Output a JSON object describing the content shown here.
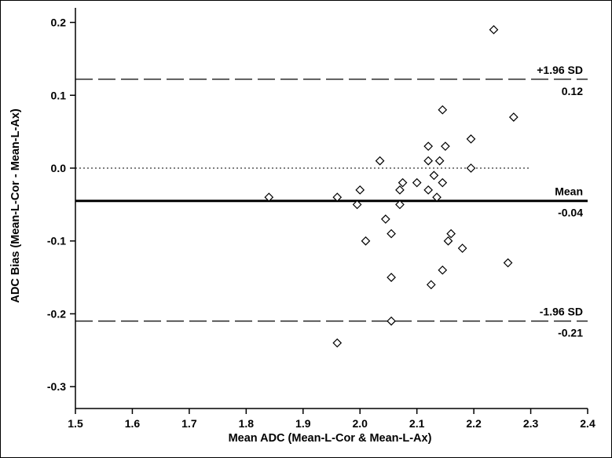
{
  "chart_data": {
    "type": "scatter",
    "title": "",
    "xlabel": "Mean ADC (Mean-L-Cor & Mean-L-Ax)",
    "ylabel": "ADC Bias (Mean-L-Cor - Mean-L-Ax)",
    "xlim": [
      1.5,
      2.4
    ],
    "ylim": [
      -0.33,
      0.22
    ],
    "x_ticks": [
      "1.5",
      "1.6",
      "1.7",
      "1.8",
      "1.9",
      "2.0",
      "2.1",
      "2.2",
      "2.3",
      "2.4"
    ],
    "x_tick_values": [
      1.5,
      1.6,
      1.7,
      1.8,
      1.9,
      2.0,
      2.1,
      2.2,
      2.3,
      2.4
    ],
    "y_ticks": [
      "0.2",
      "0.1",
      "0.0",
      "-0.1",
      "-0.2",
      "-0.3"
    ],
    "y_tick_values": [
      0.2,
      0.1,
      0.0,
      -0.1,
      -0.2,
      -0.3
    ],
    "grid": false,
    "marker": "open-diamond",
    "reference_lines": [
      {
        "kind": "upper-limit",
        "value": 0.122,
        "label_top": "+1.96 SD",
        "label_bottom": "0.12",
        "style": "dashed",
        "x_end": 2.4
      },
      {
        "kind": "zero",
        "value": 0.0,
        "label_top": "",
        "label_bottom": "",
        "style": "dotted",
        "x_end": 2.3
      },
      {
        "kind": "mean",
        "value": -0.045,
        "label_top": "Mean",
        "label_bottom": "-0.04",
        "style": "solid",
        "x_end": 2.4
      },
      {
        "kind": "lower-limit",
        "value": -0.21,
        "label_top": "-1.96 SD",
        "label_bottom": "-0.21",
        "style": "dashed",
        "x_end": 2.4
      }
    ],
    "points": [
      {
        "x": 1.84,
        "y": -0.04
      },
      {
        "x": 1.96,
        "y": -0.04
      },
      {
        "x": 1.96,
        "y": -0.24
      },
      {
        "x": 1.995,
        "y": -0.05
      },
      {
        "x": 2.0,
        "y": -0.03
      },
      {
        "x": 2.01,
        "y": -0.1
      },
      {
        "x": 2.035,
        "y": 0.01
      },
      {
        "x": 2.045,
        "y": -0.07
      },
      {
        "x": 2.055,
        "y": -0.09
      },
      {
        "x": 2.055,
        "y": -0.15
      },
      {
        "x": 2.055,
        "y": -0.21
      },
      {
        "x": 2.07,
        "y": -0.03
      },
      {
        "x": 2.07,
        "y": -0.05
      },
      {
        "x": 2.075,
        "y": -0.02
      },
      {
        "x": 2.1,
        "y": -0.02
      },
      {
        "x": 2.12,
        "y": 0.03
      },
      {
        "x": 2.12,
        "y": 0.01
      },
      {
        "x": 2.12,
        "y": -0.03
      },
      {
        "x": 2.125,
        "y": -0.16
      },
      {
        "x": 2.13,
        "y": -0.01
      },
      {
        "x": 2.135,
        "y": -0.04
      },
      {
        "x": 2.14,
        "y": 0.01
      },
      {
        "x": 2.145,
        "y": 0.08
      },
      {
        "x": 2.145,
        "y": -0.02
      },
      {
        "x": 2.145,
        "y": -0.14
      },
      {
        "x": 2.15,
        "y": 0.03
      },
      {
        "x": 2.155,
        "y": -0.1
      },
      {
        "x": 2.16,
        "y": -0.09
      },
      {
        "x": 2.18,
        "y": -0.11
      },
      {
        "x": 2.195,
        "y": 0.04
      },
      {
        "x": 2.195,
        "y": 0.0
      },
      {
        "x": 2.235,
        "y": 0.19
      },
      {
        "x": 2.26,
        "y": -0.13
      },
      {
        "x": 2.27,
        "y": 0.07
      }
    ]
  }
}
